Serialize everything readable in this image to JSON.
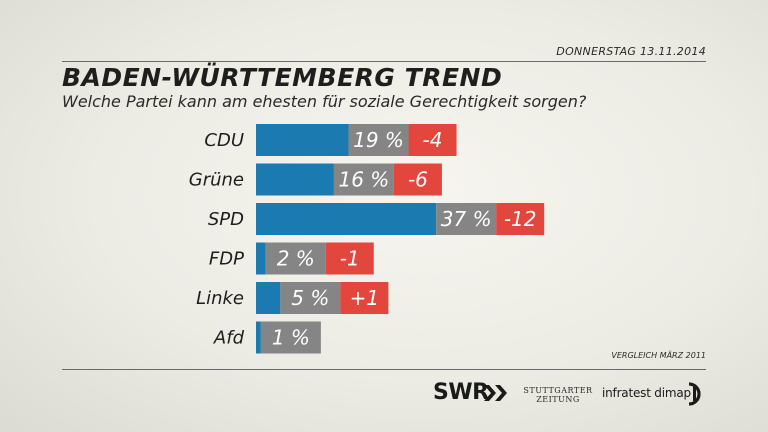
{
  "header": {
    "date": "DONNERSTAG  13.11.2014",
    "title": "BADEN-WÜRTTEMBERG TREND",
    "subtitle": "Welche Partei kann am ehesten für soziale Gerechtigkeit sorgen?"
  },
  "footer": {
    "comparison_note": "VERGLEICH MÄRZ 2011",
    "logo_swr": "SWR",
    "logo_stz_line1": "STUTTGARTER",
    "logo_stz_line2": "ZEITUNG",
    "logo_infratest": "infratest dimap"
  },
  "colors": {
    "bar": "#1b7bb0",
    "value_box": "#858585",
    "change_box": "#e2463c",
    "text": "#1e1e1e"
  },
  "chart_data": {
    "type": "bar",
    "orientation": "horizontal",
    "title": "BADEN-WÜRTTEMBERG TREND",
    "categories": [
      "CDU",
      "Grüne",
      "SPD",
      "FDP",
      "Linke",
      "Afd"
    ],
    "series": [
      {
        "values": [
          19,
          16,
          37,
          2,
          5,
          1
        ]
      },
      {
        "values": [
          "-4",
          "-6",
          "-12",
          "-1",
          "+1",
          null
        ]
      }
    ],
    "value_labels": [
      "19 %",
      "16 %",
      "37 %",
      "2 %",
      "5 %",
      "1 %"
    ],
    "grid": false,
    "legend": "none"
  }
}
